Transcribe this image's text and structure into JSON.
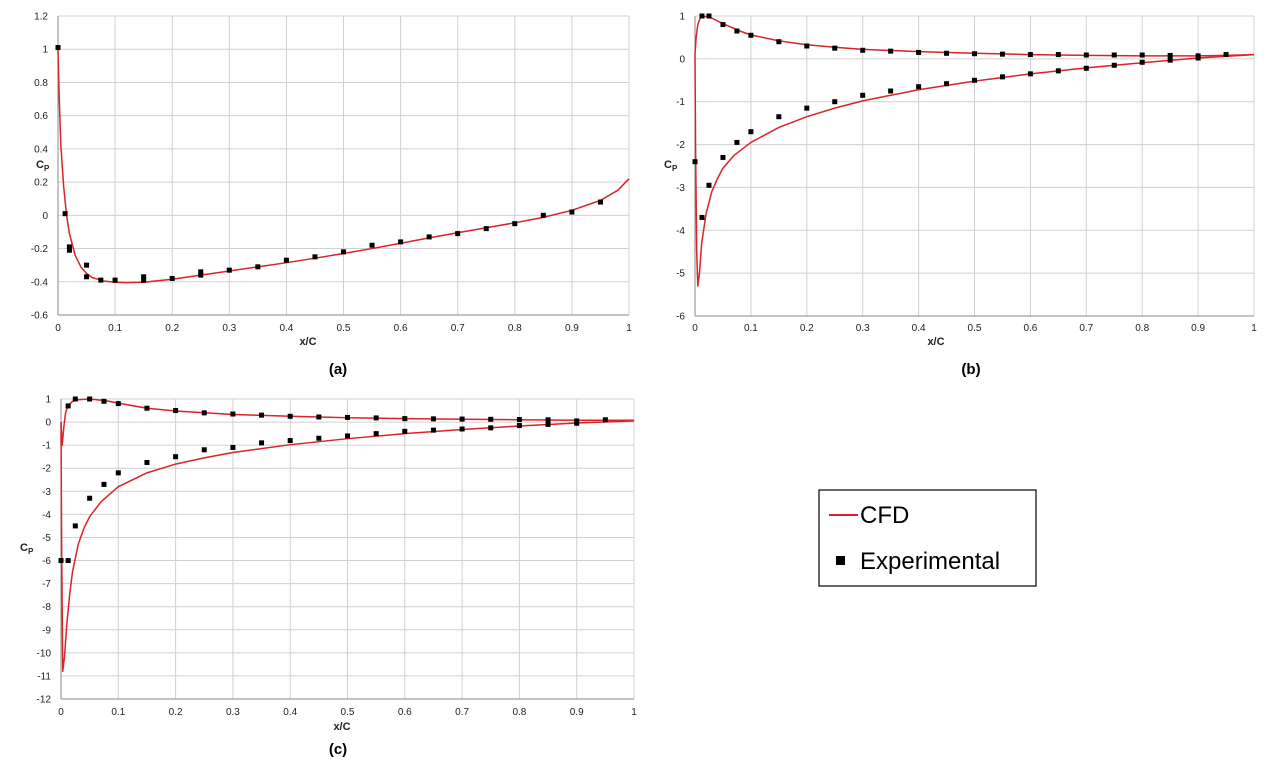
{
  "legend": {
    "cfd_label": "CFD",
    "exp_label": "Experimental",
    "cfd_color": "#d9232a",
    "exp_color": "#000000"
  },
  "chart_data": [
    {
      "type": "line",
      "panel": "a",
      "caption": "(a)",
      "xlabel": "x/C",
      "ylabel_main": "C",
      "ylabel_sub": "P",
      "xlim": [
        0,
        1
      ],
      "ylim": [
        -0.6,
        1.2
      ],
      "xticks": [
        0,
        0.1,
        0.2,
        0.3,
        0.4,
        0.5,
        0.6,
        0.7,
        0.8,
        0.9,
        1
      ],
      "xtick_labels": [
        "0",
        "0.1",
        "0.2",
        "0.3",
        "0.4",
        "0.5",
        "0.6",
        "0.7",
        "0.8",
        "0.9",
        "1"
      ],
      "yticks": [
        -0.6,
        -0.4,
        -0.2,
        0,
        0.2,
        0.4,
        0.6,
        0.8,
        1,
        1.2
      ],
      "ytick_labels": [
        "-0.6",
        "-0.4",
        "-0.2",
        "0",
        "0.2",
        "0.4",
        "0.6",
        "0.8",
        "1",
        "1.2"
      ],
      "grid": true,
      "series": [
        {
          "name": "CFD",
          "kind": "line",
          "points": [
            [
              0,
              1.0
            ],
            [
              0.002,
              0.72
            ],
            [
              0.005,
              0.42
            ],
            [
              0.01,
              0.17
            ],
            [
              0.015,
              0.0
            ],
            [
              0.02,
              -0.11
            ],
            [
              0.03,
              -0.24
            ],
            [
              0.04,
              -0.31
            ],
            [
              0.05,
              -0.35
            ],
            [
              0.06,
              -0.375
            ],
            [
              0.08,
              -0.395
            ],
            [
              0.1,
              -0.403
            ],
            [
              0.12,
              -0.405
            ],
            [
              0.15,
              -0.403
            ],
            [
              0.2,
              -0.385
            ],
            [
              0.25,
              -0.36
            ],
            [
              0.3,
              -0.335
            ],
            [
              0.35,
              -0.31
            ],
            [
              0.4,
              -0.285
            ],
            [
              0.45,
              -0.258
            ],
            [
              0.5,
              -0.23
            ],
            [
              0.55,
              -0.2
            ],
            [
              0.6,
              -0.168
            ],
            [
              0.65,
              -0.136
            ],
            [
              0.7,
              -0.105
            ],
            [
              0.75,
              -0.075
            ],
            [
              0.8,
              -0.045
            ],
            [
              0.85,
              -0.012
            ],
            [
              0.9,
              0.03
            ],
            [
              0.95,
              0.09
            ],
            [
              0.98,
              0.15
            ],
            [
              1.0,
              0.22
            ]
          ]
        },
        {
          "name": "Experimental",
          "kind": "scatter",
          "points": [
            [
              0.0,
              1.01
            ],
            [
              0.0125,
              0.01
            ],
            [
              0.02,
              -0.19
            ],
            [
              0.02,
              -0.21
            ],
            [
              0.05,
              -0.3
            ],
            [
              0.05,
              -0.37
            ],
            [
              0.075,
              -0.39
            ],
            [
              0.1,
              -0.39
            ],
            [
              0.15,
              -0.37
            ],
            [
              0.15,
              -0.39
            ],
            [
              0.2,
              -0.38
            ],
            [
              0.25,
              -0.34
            ],
            [
              0.25,
              -0.36
            ],
            [
              0.3,
              -0.33
            ],
            [
              0.35,
              -0.31
            ],
            [
              0.4,
              -0.27
            ],
            [
              0.45,
              -0.25
            ],
            [
              0.5,
              -0.22
            ],
            [
              0.55,
              -0.18
            ],
            [
              0.6,
              -0.16
            ],
            [
              0.65,
              -0.13
            ],
            [
              0.7,
              -0.11
            ],
            [
              0.75,
              -0.08
            ],
            [
              0.8,
              -0.05
            ],
            [
              0.85,
              0.0
            ],
            [
              0.9,
              0.02
            ],
            [
              0.95,
              0.08
            ]
          ]
        }
      ]
    },
    {
      "type": "line",
      "panel": "b",
      "caption": "(b)",
      "xlabel": "x/C",
      "ylabel_main": "C",
      "ylabel_sub": "P",
      "xlim": [
        0,
        1
      ],
      "ylim": [
        -6,
        1
      ],
      "xticks": [
        0,
        0.1,
        0.2,
        0.3,
        0.4,
        0.5,
        0.6,
        0.7,
        0.8,
        0.9,
        1
      ],
      "xtick_labels": [
        "0",
        "0.1",
        "0.2",
        "0.3",
        "0.4",
        "0.5",
        "0.6",
        "0.7",
        "0.8",
        "0.9",
        "1"
      ],
      "yticks": [
        -6,
        -5,
        -4,
        -3,
        -2,
        -1,
        0,
        1
      ],
      "ytick_labels": [
        "-6",
        "-5",
        "-4",
        "-3",
        "-2",
        "-1",
        "0",
        "1"
      ],
      "grid": true,
      "series": [
        {
          "name": "CFD",
          "kind": "line",
          "points": [
            [
              0.0,
              0.1
            ],
            [
              0.002,
              0.5
            ],
            [
              0.005,
              0.8
            ],
            [
              0.01,
              0.97
            ],
            [
              0.02,
              0.99
            ],
            [
              0.03,
              0.95
            ],
            [
              0.05,
              0.82
            ],
            [
              0.08,
              0.65
            ],
            [
              0.1,
              0.56
            ],
            [
              0.15,
              0.42
            ],
            [
              0.2,
              0.33
            ],
            [
              0.25,
              0.27
            ],
            [
              0.3,
              0.22
            ],
            [
              0.4,
              0.17
            ],
            [
              0.5,
              0.13
            ],
            [
              0.6,
              0.1
            ],
            [
              0.7,
              0.08
            ],
            [
              0.8,
              0.07
            ],
            [
              0.9,
              0.07
            ],
            [
              0.95,
              0.08
            ],
            [
              1.0,
              0.1
            ]
          ]
        },
        {
          "name": "CFD",
          "kind": "line",
          "points": [
            [
              0.0,
              0.1
            ],
            [
              0.001,
              -2.0
            ],
            [
              0.003,
              -4.5
            ],
            [
              0.005,
              -5.3
            ],
            [
              0.008,
              -5.0
            ],
            [
              0.012,
              -4.3
            ],
            [
              0.02,
              -3.6
            ],
            [
              0.03,
              -3.1
            ],
            [
              0.04,
              -2.8
            ],
            [
              0.05,
              -2.55
            ],
            [
              0.07,
              -2.25
            ],
            [
              0.1,
              -1.95
            ],
            [
              0.15,
              -1.6
            ],
            [
              0.2,
              -1.35
            ],
            [
              0.25,
              -1.15
            ],
            [
              0.3,
              -0.98
            ],
            [
              0.4,
              -0.72
            ],
            [
              0.5,
              -0.52
            ],
            [
              0.6,
              -0.35
            ],
            [
              0.7,
              -0.21
            ],
            [
              0.8,
              -0.09
            ],
            [
              0.9,
              0.02
            ],
            [
              1.0,
              0.1
            ]
          ]
        },
        {
          "name": "Experimental",
          "kind": "scatter",
          "points": [
            [
              0.0125,
              1.0
            ],
            [
              0.025,
              1.0
            ],
            [
              0.05,
              0.8
            ],
            [
              0.075,
              0.65
            ],
            [
              0.1,
              0.55
            ],
            [
              0.15,
              0.4
            ],
            [
              0.2,
              0.3
            ],
            [
              0.25,
              0.25
            ],
            [
              0.3,
              0.2
            ],
            [
              0.35,
              0.18
            ],
            [
              0.4,
              0.15
            ],
            [
              0.45,
              0.13
            ],
            [
              0.5,
              0.12
            ],
            [
              0.55,
              0.11
            ],
            [
              0.6,
              0.1
            ],
            [
              0.65,
              0.1
            ],
            [
              0.7,
              0.09
            ],
            [
              0.75,
              0.09
            ],
            [
              0.8,
              0.09
            ],
            [
              0.85,
              0.08
            ],
            [
              0.9,
              0.07
            ],
            [
              0.95,
              0.1
            ],
            [
              0.0,
              -2.4
            ],
            [
              0.0125,
              -3.7
            ],
            [
              0.025,
              -2.95
            ],
            [
              0.05,
              -2.3
            ],
            [
              0.075,
              -1.95
            ],
            [
              0.1,
              -1.7
            ],
            [
              0.15,
              -1.35
            ],
            [
              0.2,
              -1.15
            ],
            [
              0.25,
              -1.0
            ],
            [
              0.3,
              -0.85
            ],
            [
              0.35,
              -0.75
            ],
            [
              0.4,
              -0.65
            ],
            [
              0.45,
              -0.58
            ],
            [
              0.5,
              -0.5
            ],
            [
              0.55,
              -0.42
            ],
            [
              0.6,
              -0.35
            ],
            [
              0.65,
              -0.28
            ],
            [
              0.7,
              -0.22
            ],
            [
              0.75,
              -0.15
            ],
            [
              0.8,
              -0.08
            ],
            [
              0.85,
              -0.03
            ],
            [
              0.9,
              0.02
            ]
          ]
        }
      ]
    },
    {
      "type": "line",
      "panel": "c",
      "caption": "(c)",
      "xlabel": "x/C",
      "ylabel_main": "C",
      "ylabel_sub": "P",
      "xlim": [
        0,
        1
      ],
      "ylim": [
        -12,
        1
      ],
      "xticks": [
        0,
        0.1,
        0.2,
        0.3,
        0.4,
        0.5,
        0.6,
        0.7,
        0.8,
        0.9,
        1
      ],
      "xtick_labels": [
        "0",
        "0.1",
        "0.2",
        "0.3",
        "0.4",
        "0.5",
        "0.6",
        "0.7",
        "0.8",
        "0.9",
        "1"
      ],
      "yticks": [
        -12,
        -11,
        -10,
        -9,
        -8,
        -7,
        -6,
        -5,
        -4,
        -3,
        -2,
        -1,
        0,
        1
      ],
      "ytick_labels": [
        "-12",
        "-11",
        "-10",
        "-9",
        "-8",
        "-7",
        "-6",
        "-5",
        "-4",
        "-3",
        "-2",
        "-1",
        "0",
        "1"
      ],
      "grid": true,
      "series": [
        {
          "name": "CFD",
          "kind": "line",
          "points": [
            [
              0.0,
              0.0
            ],
            [
              0.002,
              -1.0
            ],
            [
              0.005,
              -0.2
            ],
            [
              0.008,
              0.4
            ],
            [
              0.012,
              0.7
            ],
            [
              0.02,
              0.9
            ],
            [
              0.03,
              0.97
            ],
            [
              0.05,
              1.0
            ],
            [
              0.08,
              0.92
            ],
            [
              0.1,
              0.82
            ],
            [
              0.15,
              0.6
            ],
            [
              0.2,
              0.48
            ],
            [
              0.3,
              0.33
            ],
            [
              0.4,
              0.25
            ],
            [
              0.5,
              0.19
            ],
            [
              0.6,
              0.15
            ],
            [
              0.7,
              0.12
            ],
            [
              0.8,
              0.1
            ],
            [
              0.9,
              0.08
            ],
            [
              1.0,
              0.08
            ]
          ]
        },
        {
          "name": "CFD",
          "kind": "line",
          "points": [
            [
              0.0,
              0.0
            ],
            [
              0.001,
              -5.0
            ],
            [
              0.003,
              -10.8
            ],
            [
              0.006,
              -10.2
            ],
            [
              0.01,
              -8.8
            ],
            [
              0.015,
              -7.5
            ],
            [
              0.02,
              -6.5
            ],
            [
              0.03,
              -5.3
            ],
            [
              0.04,
              -4.6
            ],
            [
              0.05,
              -4.1
            ],
            [
              0.07,
              -3.45
            ],
            [
              0.1,
              -2.8
            ],
            [
              0.15,
              -2.2
            ],
            [
              0.2,
              -1.82
            ],
            [
              0.25,
              -1.55
            ],
            [
              0.3,
              -1.32
            ],
            [
              0.4,
              -0.98
            ],
            [
              0.5,
              -0.72
            ],
            [
              0.6,
              -0.5
            ],
            [
              0.7,
              -0.32
            ],
            [
              0.8,
              -0.17
            ],
            [
              0.9,
              -0.04
            ],
            [
              1.0,
              0.05
            ]
          ]
        },
        {
          "name": "Experimental",
          "kind": "scatter",
          "points": [
            [
              0.0125,
              0.7
            ],
            [
              0.025,
              1.0
            ],
            [
              0.05,
              1.0
            ],
            [
              0.075,
              0.9
            ],
            [
              0.1,
              0.8
            ],
            [
              0.15,
              0.6
            ],
            [
              0.2,
              0.5
            ],
            [
              0.25,
              0.4
            ],
            [
              0.3,
              0.35
            ],
            [
              0.35,
              0.3
            ],
            [
              0.4,
              0.25
            ],
            [
              0.45,
              0.22
            ],
            [
              0.5,
              0.2
            ],
            [
              0.55,
              0.18
            ],
            [
              0.6,
              0.15
            ],
            [
              0.65,
              0.14
            ],
            [
              0.7,
              0.13
            ],
            [
              0.75,
              0.12
            ],
            [
              0.8,
              0.11
            ],
            [
              0.85,
              0.1
            ],
            [
              0.9,
              0.05
            ],
            [
              0.95,
              0.1
            ],
            [
              0.0,
              -6.0
            ],
            [
              0.0125,
              -6.0
            ],
            [
              0.025,
              -4.5
            ],
            [
              0.05,
              -3.3
            ],
            [
              0.075,
              -2.7
            ],
            [
              0.1,
              -2.2
            ],
            [
              0.15,
              -1.75
            ],
            [
              0.2,
              -1.5
            ],
            [
              0.25,
              -1.2
            ],
            [
              0.3,
              -1.1
            ],
            [
              0.35,
              -0.9
            ],
            [
              0.4,
              -0.8
            ],
            [
              0.45,
              -0.7
            ],
            [
              0.5,
              -0.6
            ],
            [
              0.55,
              -0.5
            ],
            [
              0.6,
              -0.4
            ],
            [
              0.65,
              -0.35
            ],
            [
              0.7,
              -0.3
            ],
            [
              0.75,
              -0.25
            ],
            [
              0.8,
              -0.15
            ],
            [
              0.85,
              -0.1
            ],
            [
              0.9,
              -0.05
            ]
          ]
        }
      ]
    }
  ]
}
